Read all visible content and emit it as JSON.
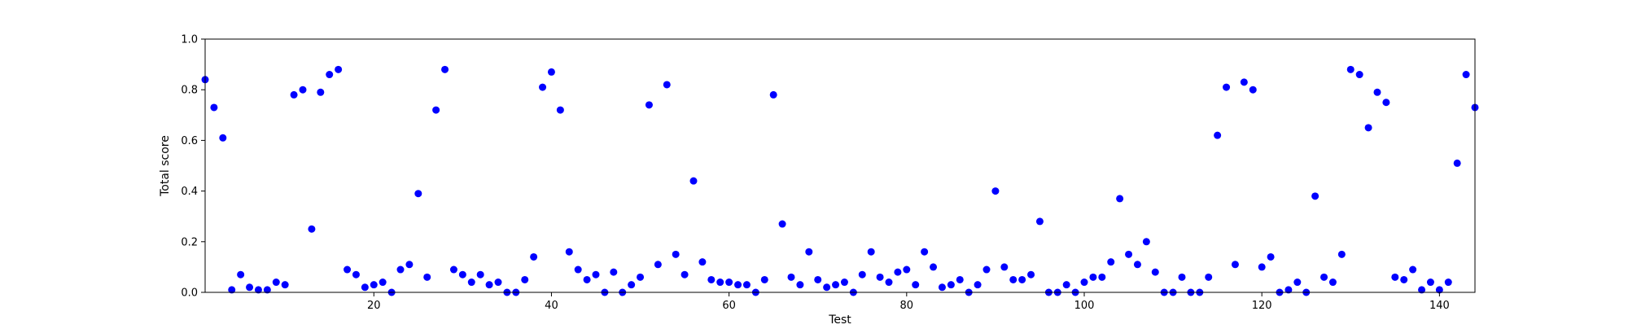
{
  "chart_data": {
    "type": "scatter",
    "xlabel": "Test",
    "ylabel": "Total score",
    "xlim": [
      1,
      144
    ],
    "ylim": [
      0.0,
      1.0
    ],
    "xticks": [
      20,
      40,
      60,
      80,
      100,
      120,
      140
    ],
    "xtick_labels": [
      "20",
      "40",
      "60",
      "80",
      "100",
      "120",
      "140"
    ],
    "yticks": [
      0.0,
      0.2,
      0.4,
      0.6,
      0.8,
      1.0
    ],
    "ytick_labels": [
      "0.0",
      "0.2",
      "0.4",
      "0.6",
      "0.8",
      "1.0"
    ],
    "grid": false,
    "marker_color": "#0000ff",
    "marker": "circle",
    "x": [
      1,
      2,
      3,
      4,
      5,
      6,
      7,
      8,
      9,
      10,
      11,
      12,
      13,
      14,
      15,
      16,
      17,
      18,
      19,
      20,
      21,
      22,
      23,
      24,
      25,
      26,
      27,
      28,
      29,
      30,
      31,
      32,
      33,
      34,
      35,
      36,
      37,
      38,
      39,
      40,
      41,
      42,
      43,
      44,
      45,
      46,
      47,
      48,
      49,
      50,
      51,
      52,
      53,
      54,
      55,
      56,
      57,
      58,
      59,
      60,
      61,
      62,
      63,
      64,
      65,
      66,
      67,
      68,
      69,
      70,
      71,
      72,
      73,
      74,
      75,
      76,
      77,
      78,
      79,
      80,
      81,
      82,
      83,
      84,
      85,
      86,
      87,
      88,
      89,
      90,
      91,
      92,
      93,
      94,
      95,
      96,
      97,
      98,
      99,
      100,
      101,
      102,
      103,
      104,
      105,
      106,
      107,
      108,
      109,
      110,
      111,
      112,
      113,
      114,
      115,
      116,
      117,
      118,
      119,
      120,
      121,
      122,
      123,
      124,
      125,
      126,
      127,
      128,
      129,
      130,
      131,
      132,
      133,
      134,
      135,
      136,
      137,
      138,
      139,
      140,
      141,
      142,
      143,
      144
    ],
    "y": [
      0.84,
      0.73,
      0.61,
      0.01,
      0.07,
      0.02,
      0.01,
      0.01,
      0.04,
      0.03,
      0.78,
      0.8,
      0.25,
      0.79,
      0.86,
      0.88,
      0.09,
      0.07,
      0.02,
      0.03,
      0.04,
      0.0,
      0.09,
      0.11,
      0.39,
      0.06,
      0.72,
      0.88,
      0.09,
      0.07,
      0.04,
      0.07,
      0.03,
      0.04,
      0.0,
      0.0,
      0.05,
      0.14,
      0.81,
      0.87,
      0.72,
      0.16,
      0.09,
      0.05,
      0.07,
      0.0,
      0.08,
      0.0,
      0.03,
      0.06,
      0.74,
      0.11,
      0.82,
      0.15,
      0.07,
      0.44,
      0.12,
      0.05,
      0.04,
      0.04,
      0.03,
      0.03,
      0.0,
      0.05,
      0.78,
      0.27,
      0.06,
      0.03,
      0.16,
      0.05,
      0.02,
      0.03,
      0.04,
      0.0,
      0.07,
      0.16,
      0.06,
      0.04,
      0.08,
      0.09,
      0.03,
      0.16,
      0.1,
      0.02,
      0.03,
      0.05,
      0.0,
      0.03,
      0.09,
      0.4,
      0.1,
      0.05,
      0.05,
      0.07,
      0.28,
      0.0,
      0.0,
      0.03,
      0.0,
      0.04,
      0.06,
      0.06,
      0.12,
      0.37,
      0.15,
      0.11,
      0.2,
      0.08,
      0.0,
      0.0,
      0.06,
      0.0,
      0.0,
      0.06,
      0.62,
      0.81,
      0.11,
      0.83,
      0.8,
      0.1,
      0.14,
      0.0,
      0.01,
      0.04,
      0.0,
      0.38,
      0.06,
      0.04,
      0.15,
      0.88,
      0.86,
      0.65,
      0.79,
      0.75,
      0.06,
      0.05,
      0.09,
      0.01,
      0.04,
      0.01,
      0.04,
      0.51,
      0.86,
      0.73
    ]
  }
}
